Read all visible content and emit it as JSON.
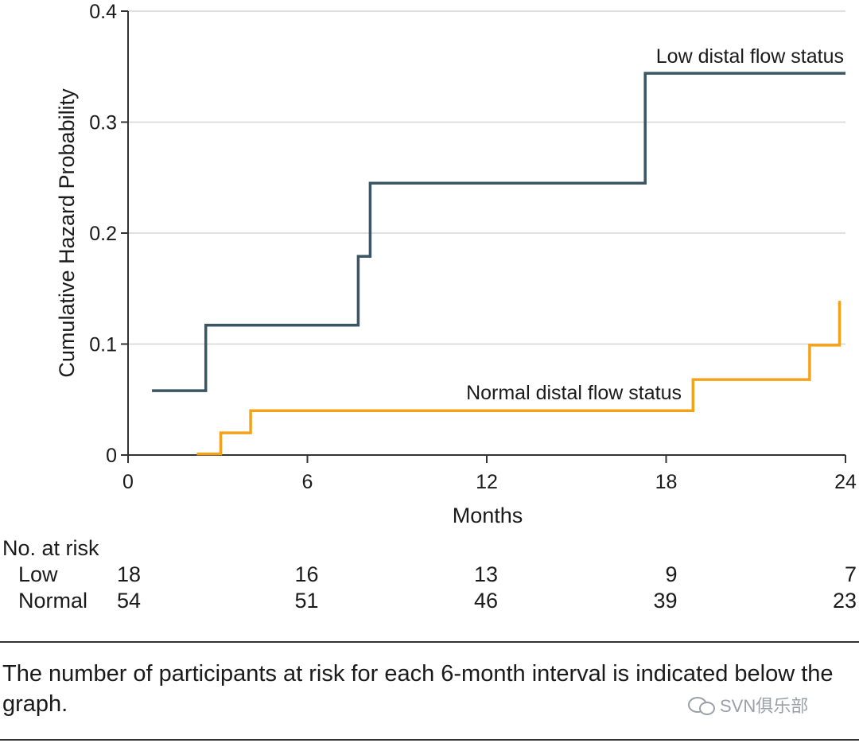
{
  "chart_data": {
    "type": "line",
    "step": true,
    "title": "",
    "xlabel": "Months",
    "ylabel": "Cumulative Hazard Probability",
    "xlim": [
      0,
      24
    ],
    "ylim": [
      0,
      0.4
    ],
    "xticks": [
      0,
      6,
      12,
      18,
      24
    ],
    "xtick_labels": [
      "0",
      "6",
      "12",
      "18",
      "24"
    ],
    "yticks": [
      0,
      0.1,
      0.2,
      0.3,
      0.4
    ],
    "ytick_labels": [
      "0",
      "0.1",
      "0.2",
      "0.3",
      "0.4"
    ],
    "grid": "horizontal",
    "series": [
      {
        "name": "Low distal flow status",
        "color": "#3a5563",
        "x": [
          0.8,
          2.6,
          2.6,
          7.7,
          7.7,
          8.1,
          8.1,
          17.3,
          17.3,
          24.0
        ],
        "y": [
          0.058,
          0.058,
          0.117,
          0.117,
          0.179,
          0.179,
          0.245,
          0.245,
          0.344,
          0.344
        ]
      },
      {
        "name": "Normal distal flow status",
        "color": "#f5a21b",
        "x": [
          2.3,
          3.1,
          3.1,
          4.1,
          4.1,
          18.9,
          18.9,
          22.8,
          22.8,
          23.8,
          23.8
        ],
        "y": [
          0.001,
          0.001,
          0.02,
          0.02,
          0.04,
          0.04,
          0.068,
          0.068,
          0.099,
          0.099,
          0.139
        ]
      }
    ]
  },
  "risk_table": {
    "heading": "No. at risk",
    "times": [
      0,
      6,
      12,
      18,
      24
    ],
    "rows": [
      {
        "label": "Low",
        "values": [
          "18",
          "16",
          "13",
          "9",
          "7"
        ]
      },
      {
        "label": "Normal",
        "values": [
          "54",
          "51",
          "46",
          "39",
          "23"
        ]
      }
    ]
  },
  "caption": "The number of participants at risk for each 6-month interval is indicated below the graph.",
  "watermark": "SVN俱乐部"
}
